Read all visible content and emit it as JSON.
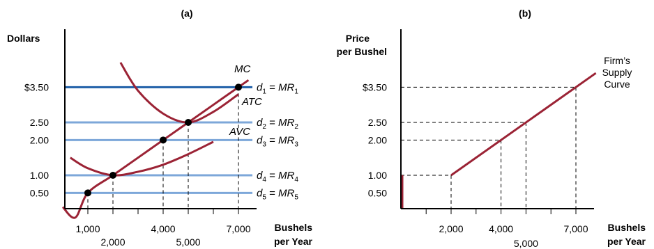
{
  "chart_data": [
    {
      "panel": "(a)",
      "type": "line",
      "ylabel": "Dollars",
      "xlabel_line1": "Bushels",
      "xlabel_line2": "per Year",
      "x_ticks": [
        1000,
        2000,
        4000,
        5000,
        7000
      ],
      "x_tick_labels": [
        "1,000",
        "2,000",
        "4,000",
        "5,000",
        "7,000"
      ],
      "y_ticks": [
        0.5,
        1.0,
        2.0,
        2.5,
        3.5
      ],
      "y_tick_labels": [
        "0.50",
        "1.00",
        "2.00",
        "2.50",
        "$3.50"
      ],
      "demand_lines": [
        {
          "d": "d",
          "sub": "1",
          "mr": "MR",
          "mrsub": "1",
          "price": 3.5,
          "color": "#1f5fa8"
        },
        {
          "d": "d",
          "sub": "2",
          "mr": "MR",
          "mrsub": "2",
          "price": 2.5,
          "color": "#7da7d9"
        },
        {
          "d": "d",
          "sub": "3",
          "mr": "MR",
          "mrsub": "3",
          "price": 2.0,
          "color": "#7da7d9"
        },
        {
          "d": "d",
          "sub": "4",
          "mr": "MR",
          "mrsub": "4",
          "price": 1.0,
          "color": "#7da7d9"
        },
        {
          "d": "d",
          "sub": "5",
          "mr": "MR",
          "mrsub": "5",
          "price": 0.5,
          "color": "#7da7d9"
        }
      ],
      "series": [
        {
          "name": "MC",
          "x": [
            0,
            500,
            1000,
            2000,
            3000,
            4000,
            5000,
            6000,
            7000,
            7400
          ],
          "y": [
            0.1,
            -0.2,
            0.5,
            1.0,
            1.5,
            2.0,
            2.5,
            3.0,
            3.5,
            3.7
          ]
        },
        {
          "name": "ATC",
          "x": [
            2300,
            3000,
            4000,
            5000,
            6000,
            7000
          ],
          "y": [
            4.2,
            3.4,
            2.75,
            2.5,
            2.8,
            3.3
          ]
        },
        {
          "name": "AVC",
          "x": [
            300,
            1000,
            2000,
            3000,
            4000,
            5000,
            6000
          ],
          "y": [
            1.5,
            1.2,
            1.0,
            1.1,
            1.3,
            1.6,
            1.95
          ]
        }
      ],
      "points": [
        {
          "x": 1000,
          "y": 0.5
        },
        {
          "x": 2000,
          "y": 1.0
        },
        {
          "x": 4000,
          "y": 2.0
        },
        {
          "x": 5000,
          "y": 2.5
        },
        {
          "x": 7000,
          "y": 3.5
        }
      ],
      "colors": {
        "curve": "#9b2335",
        "axis": "#000000"
      }
    },
    {
      "panel": "(b)",
      "type": "line",
      "ylabel_line1": "Price",
      "ylabel_line2": "per Bushel",
      "xlabel_line1": "Bushels",
      "xlabel_line2": "per Year",
      "x_ticks": [
        2000,
        4000,
        5000,
        7000
      ],
      "x_tick_labels": [
        "2,000",
        "4,000",
        "5,000",
        "7,000"
      ],
      "y_ticks": [
        0.5,
        1.0,
        2.0,
        2.5,
        3.5
      ],
      "y_tick_labels": [
        "0.50",
        "1.00",
        "2.00",
        "2.50",
        "$3.50"
      ],
      "series": [
        {
          "name": "Firm's Supply Curve",
          "x": [
            2000,
            7800
          ],
          "y": [
            1.0,
            3.9
          ]
        }
      ],
      "curve_label": [
        "Firm’s",
        "Supply",
        "Curve"
      ],
      "shutdown_segment": {
        "x": 0,
        "y": [
          0,
          1.0
        ]
      },
      "colors": {
        "curve": "#9b2335",
        "axis": "#000000"
      }
    }
  ]
}
